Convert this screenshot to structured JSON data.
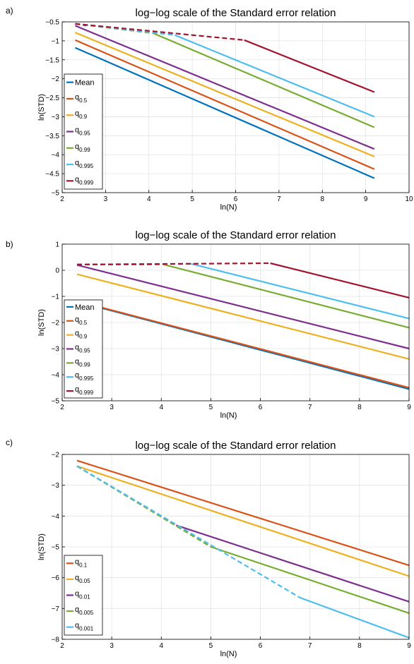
{
  "chart_data": [
    {
      "panel_label": "a)",
      "type": "line",
      "title": "log−log scale of the Standard error relation",
      "xlabel": "ln(N)",
      "ylabel": "ln(STD)",
      "xlim": [
        2,
        10
      ],
      "ylim": [
        -5,
        -0.5
      ],
      "xticks": [
        2,
        3,
        4,
        5,
        6,
        7,
        8,
        9,
        10
      ],
      "yticks": [
        -5,
        -4.5,
        -4,
        -3.5,
        -3,
        -2.5,
        -2,
        -1.5,
        -1,
        -0.5
      ],
      "xtick_labels": [
        "2",
        "3",
        "4",
        "5",
        "6",
        "7",
        "8",
        "9",
        "10"
      ],
      "ytick_labels": [
        "−5",
        "−4.5",
        "−4",
        "−3.5",
        "−3",
        "−2.5",
        "−2",
        "−1.5",
        "−1",
        "−0.5"
      ],
      "grid": true,
      "legend_position": "bottom-left",
      "series": [
        {
          "name": "Mean",
          "base": "",
          "sub": "",
          "color": "#0072BD",
          "solid": [
            [
              2.3,
              -1.18
            ],
            [
              9.2,
              -4.62
            ]
          ],
          "dashed": []
        },
        {
          "name": "q0.5",
          "base": "q",
          "sub": "0.5",
          "color": "#D95319",
          "solid": [
            [
              2.3,
              -0.98
            ],
            [
              9.2,
              -4.38
            ]
          ],
          "dashed": []
        },
        {
          "name": "q0.9",
          "base": "q",
          "sub": "0.9",
          "color": "#EDB120",
          "solid": [
            [
              2.3,
              -0.78
            ],
            [
              9.2,
              -4.05
            ]
          ],
          "dashed": []
        },
        {
          "name": "q0.95",
          "base": "q",
          "sub": "0.95",
          "color": "#7E2F8E",
          "solid": [
            [
              2.3,
              -0.6
            ],
            [
              9.2,
              -3.85
            ]
          ],
          "dashed": [
            [
              2.3,
              -0.55
            ],
            [
              2.55,
              -0.6
            ]
          ]
        },
        {
          "name": "q0.99",
          "base": "q",
          "sub": "0.99",
          "color": "#77AC30",
          "solid": [
            [
              4.1,
              -0.8
            ],
            [
              9.2,
              -3.28
            ]
          ],
          "dashed": [
            [
              2.3,
              -0.55
            ],
            [
              4.1,
              -0.8
            ]
          ]
        },
        {
          "name": "q0.995",
          "base": "q",
          "sub": "0.995",
          "color": "#4DBEEE",
          "solid": [
            [
              4.6,
              -0.85
            ],
            [
              9.2,
              -3.0
            ]
          ],
          "dashed": [
            [
              2.3,
              -0.55
            ],
            [
              4.6,
              -0.85
            ]
          ]
        },
        {
          "name": "q0.999",
          "base": "q",
          "sub": "0.999",
          "color": "#A2142F",
          "solid": [
            [
              6.2,
              -0.98
            ],
            [
              9.2,
              -2.35
            ]
          ],
          "dashed": [
            [
              2.3,
              -0.55
            ],
            [
              6.2,
              -0.98
            ]
          ]
        }
      ]
    },
    {
      "panel_label": "b)",
      "type": "line",
      "title": "log−log scale of the Standard error relation",
      "xlabel": "ln(N)",
      "ylabel": "ln(STD)",
      "xlim": [
        2,
        9
      ],
      "ylim": [
        -5,
        1
      ],
      "xticks": [
        2,
        3,
        4,
        5,
        6,
        7,
        8,
        9
      ],
      "yticks": [
        -5,
        -4,
        -3,
        -2,
        -1,
        0,
        1
      ],
      "xtick_labels": [
        "2",
        "3",
        "4",
        "5",
        "6",
        "7",
        "8",
        "9"
      ],
      "ytick_labels": [
        "−5",
        "−4",
        "−3",
        "−2",
        "−1",
        "0",
        "1"
      ],
      "grid": true,
      "legend_position": "bottom-left",
      "series": [
        {
          "name": "Mean",
          "base": "",
          "sub": "",
          "color": "#0072BD",
          "solid": [
            [
              2.3,
              -1.2
            ],
            [
              9.0,
              -4.55
            ]
          ],
          "dashed": []
        },
        {
          "name": "q0.5",
          "base": "q",
          "sub": "0.5",
          "color": "#D95319",
          "solid": [
            [
              2.3,
              -1.18
            ],
            [
              9.0,
              -4.5
            ]
          ],
          "dashed": []
        },
        {
          "name": "q0.9",
          "base": "q",
          "sub": "0.9",
          "color": "#EDB120",
          "solid": [
            [
              2.3,
              -0.15
            ],
            [
              9.0,
              -3.4
            ]
          ],
          "dashed": []
        },
        {
          "name": "q0.95",
          "base": "q",
          "sub": "0.95",
          "color": "#7E2F8E",
          "solid": [
            [
              2.3,
              0.2
            ],
            [
              9.0,
              -3.0
            ]
          ],
          "dashed": []
        },
        {
          "name": "q0.99",
          "base": "q",
          "sub": "0.99",
          "color": "#77AC30",
          "solid": [
            [
              4.05,
              0.22
            ],
            [
              9.0,
              -2.2
            ]
          ],
          "dashed": [
            [
              2.3,
              0.22
            ],
            [
              4.05,
              0.22
            ]
          ]
        },
        {
          "name": "q0.995",
          "base": "q",
          "sub": "0.995",
          "color": "#4DBEEE",
          "solid": [
            [
              4.6,
              0.25
            ],
            [
              9.0,
              -1.85
            ]
          ],
          "dashed": [
            [
              2.3,
              0.22
            ],
            [
              4.6,
              0.25
            ]
          ]
        },
        {
          "name": "q0.999",
          "base": "q",
          "sub": "0.999",
          "color": "#A2142F",
          "solid": [
            [
              6.2,
              0.27
            ],
            [
              9.0,
              -1.05
            ]
          ],
          "dashed": [
            [
              2.3,
              0.22
            ],
            [
              6.2,
              0.27
            ]
          ]
        }
      ]
    },
    {
      "panel_label": "c)",
      "type": "line",
      "title": "log−log scale of the Standard error relation",
      "xlabel": "ln(N)",
      "ylabel": "ln(STD)",
      "xlim": [
        2,
        9
      ],
      "ylim": [
        -8,
        -2
      ],
      "xticks": [
        2,
        3,
        4,
        5,
        6,
        7,
        8,
        9
      ],
      "yticks": [
        -8,
        -7,
        -6,
        -5,
        -4,
        -3,
        -2
      ],
      "xtick_labels": [
        "2",
        "3",
        "4",
        "5",
        "6",
        "7",
        "8",
        "9"
      ],
      "ytick_labels": [
        "−8",
        "−7",
        "−6",
        "−5",
        "−4",
        "−3",
        "−2"
      ],
      "grid": true,
      "legend_position": "bottom-left",
      "series": [
        {
          "name": "q0.1",
          "base": "q",
          "sub": "0.1",
          "color": "#D95319",
          "solid": [
            [
              2.3,
              -2.2
            ],
            [
              9.0,
              -5.6
            ]
          ],
          "dashed": []
        },
        {
          "name": "q0.05",
          "base": "q",
          "sub": "0.05",
          "color": "#EDB120",
          "solid": [
            [
              2.3,
              -2.38
            ],
            [
              9.0,
              -5.95
            ]
          ],
          "dashed": []
        },
        {
          "name": "q0.01",
          "base": "q",
          "sub": "0.01",
          "color": "#7E2F8E",
          "solid": [
            [
              4.3,
              -4.3
            ],
            [
              9.0,
              -6.78
            ]
          ],
          "dashed": [
            [
              2.3,
              -2.38
            ],
            [
              4.3,
              -4.3
            ]
          ]
        },
        {
          "name": "q0.005",
          "base": "q",
          "sub": "0.005",
          "color": "#77AC30",
          "solid": [
            [
              5.0,
              -5.0
            ],
            [
              9.0,
              -7.15
            ]
          ],
          "dashed": [
            [
              2.3,
              -2.38
            ],
            [
              5.0,
              -5.0
            ]
          ]
        },
        {
          "name": "q0.001",
          "base": "q",
          "sub": "0.001",
          "color": "#4DBEEE",
          "solid": [
            [
              6.8,
              -6.65
            ],
            [
              9.0,
              -7.95
            ]
          ],
          "dashed": [
            [
              2.3,
              -2.38
            ],
            [
              6.8,
              -6.65
            ]
          ]
        }
      ]
    }
  ]
}
